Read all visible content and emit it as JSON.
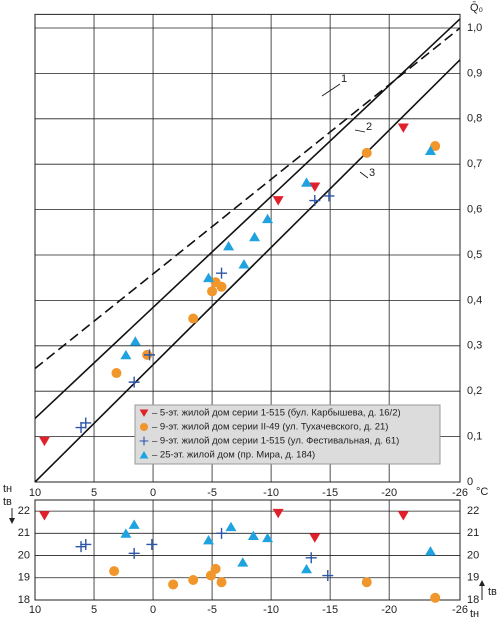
{
  "chart_data": [
    {
      "type": "scatter",
      "y_label": "Q̄₀",
      "x_unit": "°C",
      "xlim": [
        10,
        -26
      ],
      "ylim": [
        0,
        1.03
      ],
      "xticks": [
        10,
        5,
        0,
        -5,
        -10,
        -15,
        -20,
        -26
      ],
      "yticks": [
        0,
        {
          "value": 0.1,
          "label": "0,1"
        },
        {
          "value": 0.2,
          "label": "0,2"
        },
        {
          "value": 0.3,
          "label": "0,3"
        },
        {
          "value": 0.4,
          "label": "0,4"
        },
        {
          "value": 0.5,
          "label": "0,5"
        },
        {
          "value": 0.6,
          "label": "0,6"
        },
        {
          "value": 0.7,
          "label": "0,7"
        },
        {
          "value": 0.8,
          "label": "0,8"
        },
        {
          "value": 0.9,
          "label": "0,9"
        },
        {
          "value": 1.0,
          "label": "1,0"
        }
      ],
      "grid": true,
      "lines": [
        {
          "name": "1",
          "dashed": true,
          "x": [
            10,
            -26
          ],
          "y": [
            0.25,
            1.0
          ]
        },
        {
          "name": "2",
          "dashed": false,
          "x": [
            10,
            -26
          ],
          "y": [
            0.14,
            1.02
          ]
        },
        {
          "name": "3",
          "dashed": false,
          "x": [
            10,
            -26
          ],
          "y": [
            0,
            0.93
          ]
        }
      ],
      "series": [
        {
          "name": "– 5-эт. жилой дом серии 1-515 (бул. Карбышева, д. 16/2)",
          "color": "#e0202a",
          "marker": "triangle-down",
          "x": [
            9.2,
            -10.6,
            -13.7,
            -21.2
          ],
          "values": [
            0.09,
            0.62,
            0.65,
            0.78
          ]
        },
        {
          "name": "– 9-эт. жилой дом серии II-49 (ул. Тухачевского, д. 21)",
          "color": "#f0962a",
          "marker": "circle",
          "x": [
            3.1,
            0.5,
            -3.4,
            -5.0,
            -5.3,
            -5.8,
            -18.1,
            -23.9
          ],
          "values": [
            0.24,
            0.28,
            0.36,
            0.42,
            0.44,
            0.43,
            0.725,
            0.74
          ]
        },
        {
          "name": "– 9-эт. жилой дом серии 1-515 (ул. Фестивальная, д. 61)",
          "color": "#2d55a8",
          "marker": "plus",
          "x": [
            6.1,
            5.7,
            1.6,
            0.3,
            -5.8,
            -13.7,
            -14.9
          ],
          "values": [
            0.12,
            0.13,
            0.22,
            0.28,
            0.46,
            0.62,
            0.63
          ]
        },
        {
          "name": "– 25-эт. жилой дом (пр. Мира, д. 184)",
          "color": "#1fa3e0",
          "marker": "triangle-up",
          "x": [
            2.3,
            1.5,
            -4.7,
            -6.4,
            -7.7,
            -8.6,
            -9.7,
            -13.0,
            -23.5
          ],
          "values": [
            0.28,
            0.31,
            0.45,
            0.52,
            0.48,
            0.54,
            0.58,
            0.66,
            0.73
          ]
        }
      ]
    },
    {
      "type": "scatter",
      "t_out_label": "tн",
      "t_in_label": "tв",
      "xlim": [
        10,
        -26
      ],
      "ylim": [
        18,
        22.5
      ],
      "xticks": [
        10,
        5,
        0,
        -5,
        -10,
        -15,
        -20,
        -26
      ],
      "yticks": [
        18,
        19,
        20,
        21,
        22
      ],
      "grid": true,
      "series": [
        {
          "color": "#e0202a",
          "marker": "triangle-down",
          "x": [
            9.2,
            -10.6,
            -13.7,
            -21.2
          ],
          "values": [
            21.8,
            21.9,
            20.8,
            21.8
          ]
        },
        {
          "color": "#f0962a",
          "marker": "circle",
          "x": [
            3.3,
            -1.7,
            -3.4,
            -4.9,
            -5.3,
            -5.8,
            -18.1,
            -23.9
          ],
          "values": [
            19.3,
            18.7,
            18.9,
            19.1,
            19.4,
            18.8,
            18.8,
            18.1
          ]
        },
        {
          "color": "#2d55a8",
          "marker": "plus",
          "x": [
            6.1,
            5.7,
            1.6,
            0.1,
            -5.8,
            -13.4,
            -14.8
          ],
          "values": [
            20.4,
            20.5,
            20.1,
            20.5,
            21.0,
            19.9,
            19.1
          ]
        },
        {
          "color": "#1fa3e0",
          "marker": "triangle-up",
          "x": [
            2.3,
            1.6,
            -4.7,
            -6.6,
            -7.6,
            -8.5,
            -9.7,
            -13.0,
            -23.5
          ],
          "values": [
            21.0,
            21.4,
            20.7,
            21.3,
            19.7,
            20.9,
            20.8,
            19.4,
            20.2
          ]
        }
      ]
    }
  ]
}
